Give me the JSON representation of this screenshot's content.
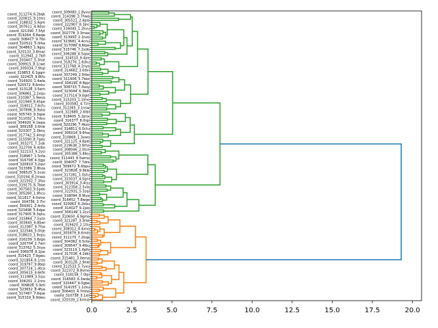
{
  "chart_data": {
    "type": "dendrogram",
    "orientation": "left",
    "title": "",
    "xlabel": "",
    "ylabel": "",
    "xlim": [
      0,
      20.57
    ],
    "xticks": [
      "0.0",
      "2.5",
      "5.0",
      "7.5",
      "10.0",
      "12.5",
      "15.0",
      "17.5",
      "20.0"
    ],
    "xtick_values": [
      0,
      2.5,
      5,
      7.5,
      10,
      12.5,
      15,
      17.5,
      20
    ],
    "color_threshold": 13.5,
    "colors": {
      "above_threshold": "#1f77b4",
      "clusters": [
        "#2ca02c",
        "#ff7f0e"
      ]
    },
    "tree": {
      "h": 19.3,
      "c": [
        {
          "h": 8.0,
          "c": [
            {
              "h": 5.05,
              "c": [
                {
                  "h": 3.51,
                  "c": [
                    {
                      "h": 2.86,
                      "c": [
                        {
                          "h": 2.53,
                          "c": [
                            {
                              "n": 5,
                              "h": 2.42
                            },
                            {
                              "h": 2.2,
                              "c": [
                                {
                                  "n": 14,
                                  "h": 2.0
                                },
                                {
                                  "n": 3,
                                  "h": 1.0
                                }
                              ]
                            }
                          ]
                        },
                        {
                          "n": 9,
                          "h": 1.69
                        }
                      ]
                    },
                    {
                      "h": 2.42,
                      "c": [
                        {
                          "n": 10,
                          "h": 2.05
                        },
                        {
                          "n": 7,
                          "h": 1.8
                        }
                      ]
                    }
                  ]
                },
                {
                  "h": 2.66,
                  "c": [
                    {
                      "h": 2.4,
                      "c": [
                        {
                          "n": 7,
                          "h": 2.1
                        },
                        {
                          "n": 6,
                          "h": 1.8
                        }
                      ]
                    },
                    {
                      "n": 5,
                      "h": 1.18
                    }
                  ]
                }
              ]
            },
            {
              "h": 3.96,
              "c": [
                {
                  "h": 3.5,
                  "c": [
                    {
                      "n": 7,
                      "h": 1.69
                    },
                    {
                      "n": 10,
                      "h": 1.55
                    }
                  ]
                },
                {
                  "h": 2.94,
                  "c": [
                    {
                      "h": 2.2,
                      "c": [
                        {
                          "n": 9,
                          "h": 1.96
                        },
                        {
                          "n": 3,
                          "h": 1.43
                        }
                      ]
                    },
                    {
                      "n": 2,
                      "h": 0.74
                    }
                  ]
                }
              ]
            }
          ]
        },
        {
          "h": 3.39,
          "c": [
            {
              "h": 2.73,
              "c": [
                {
                  "h": 1.76,
                  "c": [
                    {
                      "n": 6,
                      "h": 1.02
                    },
                    {
                      "n": 6,
                      "h": 0.78
                    }
                  ]
                },
                {
                  "n": 9,
                  "h": 1.18
                }
              ]
            },
            {
              "h": 2.0,
              "c": [
                {
                  "h": 1.7,
                  "c": [
                    {
                      "n": 7,
                      "h": 1.42
                    },
                    {
                      "n": 7,
                      "h": 1.24
                    }
                  ]
                },
                {
                  "n": 7,
                  "h": 1.5
                }
              ]
            }
          ]
        }
      ]
    },
    "leaf_labels": [
      "coord_309080_1.8yxv",
      "coord_311274_6.2bqk",
      "coord_314398_3.7hwa",
      "coord_320815_9.1tmz",
      "coord_305521_2.4pla",
      "coord_318832_5.6gre",
      "coord_322907_8.3jnc",
      "coord_307611_4.9dso",
      "coord_316045_1.2kvu",
      "coord_321390_7.5fyt",
      "coord_302778_3.3max",
      "coord_319264_6.8wqe",
      "coord_313950_2.1hzo",
      "coord_308417_9.7lbi",
      "coord_323681_4.4cnu",
      "coord_310522_5.0rka",
      "coord_317099_8.6tpe",
      "coord_304863_1.9gsy",
      "coord_315746_7.2vdo",
      "coord_320133_3.8mwi",
      "coord_306288_6.5qax",
      "coord_312941_2.7bfl",
      "coord_324510_9.4jre",
      "coord_303407_5.3hot",
      "coord_318276_1.6zku",
      "coord_309915_8.1cwe",
      "coord_321768_4.2nya",
      "coord_305034_7.9lsp",
      "coord_314682_3.0dvi",
      "coord_319853_6.1gqm",
      "coord_307249_2.9rbo",
      "coord_322415_9.8tfu",
      "coord_311606_5.7kex",
      "coord_316920_1.4wla",
      "coord_304195_8.8pjz",
      "coord_320572_4.6mhc",
      "coord_308733_7.0soy",
      "coord_313128_3.5ern",
      "coord_323044_6.3bdi",
      "coord_306861_2.2xqu",
      "coord_317514_9.0gkt",
      "coord_310387_5.9wva",
      "coord_315203_1.1lmo",
      "coord_321949_8.4hpe",
      "coord_303582_4.7zri",
      "coord_319011_7.6cfu",
      "coord_312265_3.1nsw",
      "coord_307896_6.9yka",
      "coord_322680_2.6tbl",
      "coord_305743_9.3qoe",
      "coord_318405_5.2jmx",
      "coord_311032_1.7dvu",
      "coord_316377_8.0rgi",
      "coord_304920_4.1wpa",
      "coord_320296_7.4kzo",
      "coord_309158_3.6hle",
      "coord_314811_6.0ctu",
      "coord_323307_2.3bny",
      "coord_306014_9.6fsa",
      "coord_317742_5.4mqi",
      "coord_310869_1.3xwo",
      "coord_315590_8.7gdu",
      "coord_321125_4.8ple",
      "coord_303271_7.1vjk",
      "coord_319638_3.9rha",
      "coord_312704_6.4zbo",
      "coord_308046_2.0tce",
      "coord_322153_9.2ysi",
      "coord_305388_5.8lku",
      "coord_318967_1.5nfa",
      "coord_311443_8.5wmo",
      "coord_316708_4.3jgx",
      "coord_304057_7.7dre",
      "coord_320819_3.2qvi",
      "coord_309672_6.6bpu",
      "coord_313389_2.8hza",
      "coord_323826_9.9kle",
      "coord_306525_5.1cso",
      "coord_317281_1.0ytu",
      "coord_310194_8.2mwa",
      "coord_315037_4.5gni",
      "coord_321502_7.3fxo",
      "coord_303914_3.4rju",
      "coord_319175_6.7bke",
      "coord_312358_2.5vla",
      "coord_307583_9.5pdo",
      "coord_322931_5.5zqi",
      "coord_305260_1.8hcu",
      "coord_318094_8.9tya",
      "coord_311817_4.0smo",
      "coord_316452_7.8wge",
      "coord_304736_3.7lri",
      "coord_320063_6.2kbu",
      "coord_309301_2.4nfa",
      "coord_314027_9.1jxo",
      "coord_323498_5.6dpe",
      "coord_306149_1.2cvi",
      "coord_317905_8.3qhu",
      "coord_310650_4.9gma",
      "coord_315864_7.5yzo",
      "coord_321287_3.3rke",
      "coord_303645_6.8bwi",
      "coord_319420_2.1tlu",
      "coord_312087_9.7fsa",
      "coord_308312_4.4xno",
      "coord_322546_5.0hje",
      "coord_305879_8.6mdi",
      "coord_318623_1.9vpu",
      "coord_311170_7.2kqa",
      "coord_316239_3.8zgo",
      "coord_304382_6.5cte",
      "coord_320704_2.7wri",
      "coord_309547_9.4lbu",
      "coord_313762_5.3nya",
      "coord_323119_1.6pfo",
      "coord_306978_8.1jse",
      "coord_317036_4.2dki",
      "coord_310423_7.9gwu",
      "coord_315481_3.0ema",
      "coord_321854_6.1rzo",
      "coord_303128_2.9hle",
      "coord_319797_9.8bqi",
      "coord_312533_5.7yxu",
      "coord_307724_1.4tca",
      "coord_322372_8.8vmo",
      "coord_305615_4.6kfe",
      "coord_318158_7.0lpi",
      "coord_311989_3.5sju",
      "coord_316583_6.3wda",
      "coord_304201_2.2nro",
      "coord_320447_9.0gbe",
      "coord_309826_5.9zti",
      "coord_314155_1.1cku",
      "coord_323652_8.4fya",
      "coord_306403_4.7mho",
      "coord_317467_7.6qse",
      "coord_310738_3.1xli",
      "coord_315319_6.9dwu",
      "coord_325539_2.6rmia"
    ]
  }
}
